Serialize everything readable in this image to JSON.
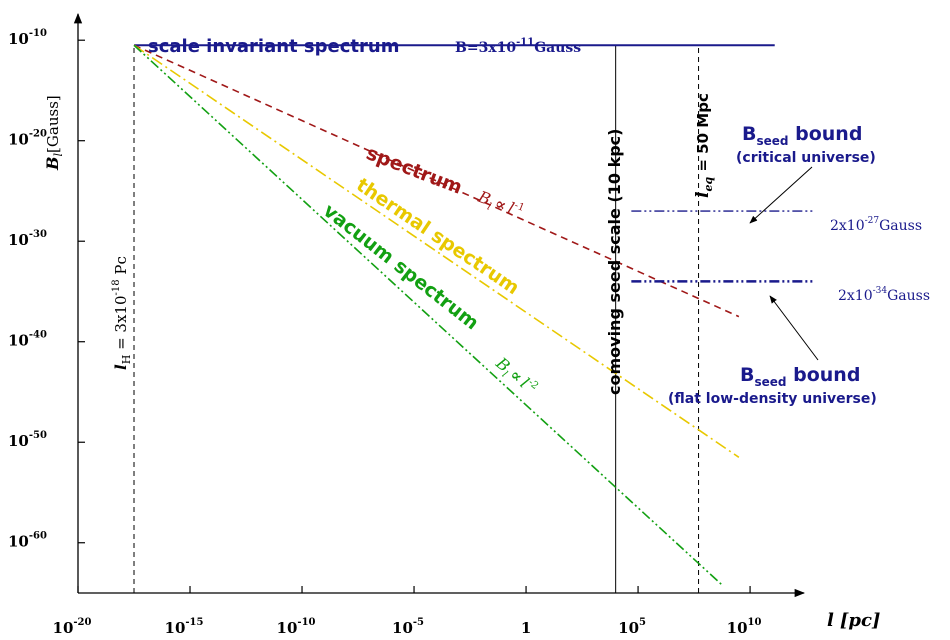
{
  "chart_data": {
    "type": "line",
    "x_scale": "log",
    "y_scale": "log",
    "xlim_exp": [
      -20,
      10.8
    ],
    "ylim_exp": [
      -65,
      -6
    ],
    "x_tick_exps": [
      -20,
      -15,
      -10,
      -5,
      0,
      5,
      10
    ],
    "x_tick_labels": [
      {
        "base": "10",
        "exp": "-20"
      },
      {
        "base": "10",
        "exp": "-15"
      },
      {
        "base": "10",
        "exp": "-10"
      },
      {
        "base": "10",
        "exp": "-5"
      },
      {
        "base": "1",
        "exp": ""
      },
      {
        "base": "10",
        "exp": "5"
      },
      {
        "base": "10",
        "exp": "10"
      }
    ],
    "y_tick_exps": [
      -10,
      -20,
      -30,
      -40,
      -50,
      -60
    ],
    "y_tick_labels": [
      {
        "base": "10",
        "exp": "-10"
      },
      {
        "base": "10",
        "exp": "-20"
      },
      {
        "base": "10",
        "exp": "-30"
      },
      {
        "base": "10",
        "exp": "-40"
      },
      {
        "base": "10",
        "exp": "-50"
      },
      {
        "base": "10",
        "exp": "-60"
      }
    ],
    "xlabel": {
      "main": "l",
      "unit": "[pc]"
    },
    "ylabel": {
      "main": "B",
      "sub": "l",
      "unit": "[Gauss]"
    },
    "series": [
      {
        "key": "scale-invariant",
        "color": "#1a1a8c",
        "style": "solid",
        "points": [
          [
            -17.5,
            -10.5
          ],
          [
            11.1,
            -10.5
          ]
        ]
      },
      {
        "key": "causal-spectrum",
        "color": "#a01818",
        "style": "dashed",
        "points": [
          [
            -17.5,
            -10.5
          ],
          [
            9.5,
            -37.5
          ]
        ]
      },
      {
        "key": "thermal-spectrum",
        "color": "#e8c800",
        "style": "dashdot",
        "points": [
          [
            -17.5,
            -10.5
          ],
          [
            9.5,
            -51.5
          ]
        ]
      },
      {
        "key": "vacuum-spectrum",
        "color": "#12a012",
        "style": "dashdotdot",
        "points": [
          [
            -17.5,
            -10.5
          ],
          [
            8.8,
            -64.3
          ]
        ]
      }
    ],
    "vertical_lines": [
      {
        "key": "hubble-scale",
        "x_exp": -17.5,
        "style": "dashed",
        "y_top_exp": -10.5
      },
      {
        "key": "seed-scale",
        "x_exp": 4,
        "style": "solid",
        "y_top_exp": -10.5
      },
      {
        "key": "equality-scale",
        "x_exp": 7.7,
        "style": "dashed",
        "y_top_exp": -10.5
      }
    ],
    "bounds": [
      {
        "key": "critical-universe",
        "y_exp": -27,
        "x_start_exp": 4.7,
        "x_end_exp": 12.8,
        "color": "#1a1a8c",
        "weight": 1.3
      },
      {
        "key": "flat-low-density",
        "y_exp": -34,
        "x_start_exp": 4.7,
        "x_end_exp": 12.8,
        "color": "#1a1a8c",
        "weight": 2.5
      }
    ],
    "annotations": {
      "scale_invariant_title": "scale invariant spectrum",
      "scale_invariant_value": "B=3x10",
      "scale_invariant_exp": "-11",
      "scale_invariant_unit": "Gauss",
      "causal_title": "spectrum",
      "causal_formula_b": "B",
      "causal_formula_sub": "l",
      "causal_formula_prop": "∝",
      "causal_formula_l": "l",
      "causal_formula_exp": "-1",
      "thermal_title": "thermal spectrum",
      "vacuum_title": "vacuum spectrum",
      "vacuum_formula_b": "B",
      "vacuum_formula_sub": "l",
      "vacuum_formula_prop": "∝",
      "vacuum_formula_l": "l",
      "vacuum_formula_exp": "-2",
      "hubble_l": "l",
      "hubble_sub": "H",
      "hubble_value": " = 3x10",
      "hubble_exp": "-18",
      "hubble_unit": " Pc",
      "seed_scale": "comoving  seed scale  (10 kpc)",
      "eq_l": "l",
      "eq_sub": "eq",
      "eq_value": " = 50 Mpc",
      "bound1_title_b": "B",
      "bound1_title_sub": "seed",
      "bound1_title_rest": "  bound",
      "bound1_subtitle": "(critical universe)",
      "bound1_value": "2x10",
      "bound1_exp": "-27",
      "bound1_unit": "Gauss",
      "bound2_title_b": "B",
      "bound2_title_sub": "seed",
      "bound2_title_rest": "  bound",
      "bound2_subtitle": "(flat low-density universe)",
      "bound2_value": "2x10",
      "bound2_exp": "-34",
      "bound2_unit": "Gauss"
    }
  }
}
